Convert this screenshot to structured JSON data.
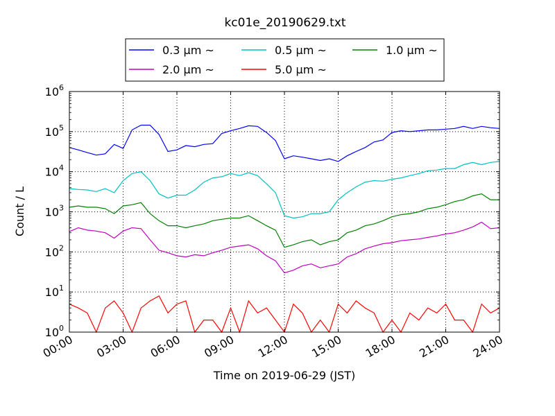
{
  "chart_data": {
    "type": "line",
    "title": "kc01e_20190629.txt",
    "xlabel": "Time on 2019-06-29 (JST)",
    "ylabel": "Count / L",
    "yscale": "log",
    "ylim": [
      1,
      1000000
    ],
    "xlim": [
      "00:00",
      "24:00"
    ],
    "grid": true,
    "legend_position": "top-center",
    "x_ticks": [
      "00:00",
      "03:00",
      "06:00",
      "09:00",
      "12:00",
      "15:00",
      "18:00",
      "21:00",
      "24:00"
    ],
    "y_ticks": [
      {
        "value": 1,
        "base": "10",
        "exp": "0"
      },
      {
        "value": 10,
        "base": "10",
        "exp": "1"
      },
      {
        "value": 100,
        "base": "10",
        "exp": "2"
      },
      {
        "value": 1000,
        "base": "10",
        "exp": "3"
      },
      {
        "value": 10000,
        "base": "10",
        "exp": "4"
      },
      {
        "value": 100000,
        "base": "10",
        "exp": "5"
      },
      {
        "value": 1000000,
        "base": "10",
        "exp": "6"
      }
    ],
    "x_hours": [
      0,
      0.5,
      1,
      1.5,
      2,
      2.5,
      3,
      3.5,
      4,
      4.5,
      5,
      5.5,
      6,
      6.5,
      7,
      7.5,
      8,
      8.5,
      9,
      9.5,
      10,
      10.5,
      11,
      11.5,
      12,
      12.5,
      13,
      13.5,
      14,
      14.5,
      15,
      15.5,
      16,
      16.5,
      17,
      17.5,
      18,
      18.5,
      19,
      19.5,
      20,
      20.5,
      21,
      21.5,
      22,
      22.5,
      23,
      23.5,
      24
    ],
    "series": [
      {
        "name": "0.3 μm ~",
        "color": "#0000ff",
        "values": [
          40000,
          35000,
          30000,
          26000,
          28000,
          48000,
          38000,
          110000,
          145000,
          145000,
          85000,
          32000,
          35000,
          45000,
          42000,
          48000,
          50000,
          90000,
          105000,
          120000,
          140000,
          135000,
          95000,
          60000,
          21000,
          25000,
          23000,
          21000,
          19000,
          21000,
          18000,
          25000,
          32000,
          40000,
          55000,
          62000,
          95000,
          105000,
          100000,
          105000,
          110000,
          110000,
          115000,
          120000,
          135000,
          120000,
          135000,
          125000,
          120000
        ]
      },
      {
        "name": "0.5 μm ~",
        "color": "#00c0c0",
        "values": [
          3800,
          3600,
          3500,
          3200,
          3800,
          3000,
          6000,
          9000,
          10000,
          6000,
          2800,
          2200,
          2600,
          2600,
          3500,
          5500,
          7000,
          7500,
          9000,
          8000,
          9500,
          8000,
          5000,
          3000,
          800,
          700,
          750,
          900,
          900,
          1000,
          2000,
          3000,
          4200,
          5500,
          6000,
          5800,
          6500,
          7000,
          8000,
          9000,
          10500,
          11000,
          12000,
          12000,
          15000,
          17000,
          15000,
          17000,
          18000
        ]
      },
      {
        "name": "1.0 μm ~",
        "color": "#008000",
        "values": [
          1300,
          1400,
          1300,
          1300,
          1200,
          900,
          1400,
          1500,
          1700,
          900,
          600,
          450,
          450,
          400,
          450,
          500,
          600,
          650,
          700,
          700,
          800,
          600,
          450,
          350,
          130,
          150,
          180,
          200,
          150,
          180,
          200,
          300,
          350,
          450,
          500,
          600,
          750,
          850,
          900,
          1000,
          1200,
          1300,
          1500,
          1800,
          2000,
          2500,
          2800,
          2000,
          2000
        ]
      },
      {
        "name": "2.0 μm ~",
        "color": "#c000c0",
        "values": [
          320,
          400,
          350,
          330,
          300,
          220,
          330,
          400,
          380,
          200,
          110,
          95,
          80,
          75,
          85,
          80,
          95,
          110,
          130,
          140,
          150,
          120,
          80,
          60,
          30,
          35,
          45,
          50,
          40,
          45,
          50,
          75,
          90,
          120,
          140,
          160,
          170,
          190,
          200,
          210,
          230,
          250,
          280,
          300,
          350,
          420,
          550,
          380,
          400
        ]
      },
      {
        "name": "5.0 μm ~",
        "color": "#ff0000",
        "values": [
          5,
          4,
          3,
          1,
          4,
          6,
          3,
          1,
          4,
          6,
          8,
          3,
          5,
          6,
          1,
          2,
          2,
          1,
          4,
          1,
          6,
          3,
          4,
          2,
          1,
          5,
          3,
          1,
          2,
          1,
          5,
          3,
          6,
          4,
          3,
          1,
          2,
          1,
          3,
          2,
          4,
          3,
          5,
          2,
          2,
          1,
          5,
          3,
          4
        ]
      }
    ]
  }
}
